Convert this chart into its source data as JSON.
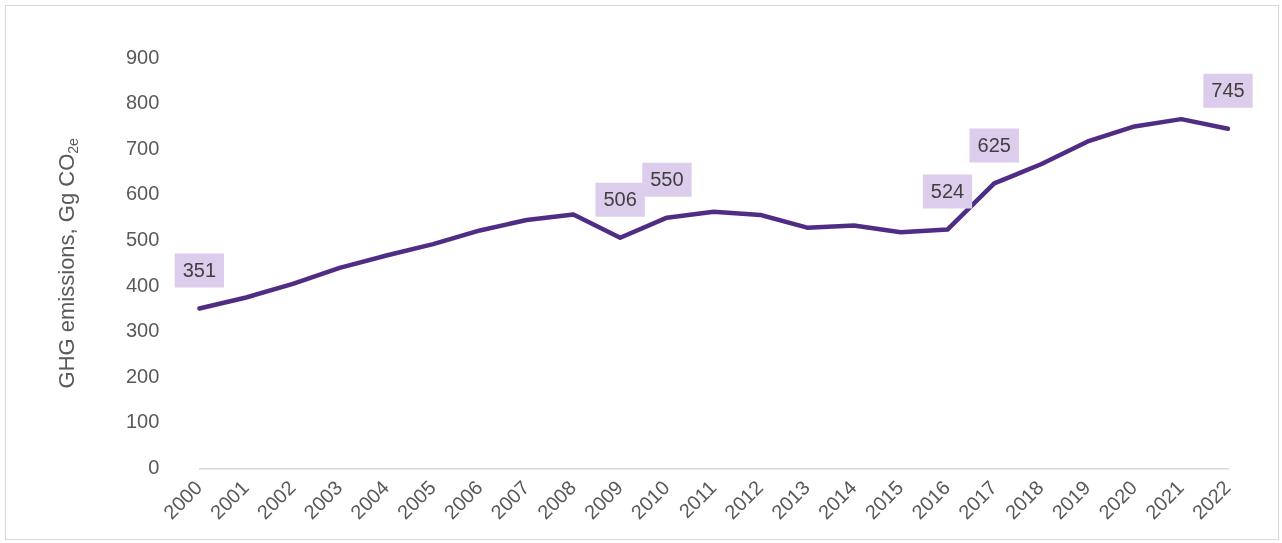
{
  "chart_data": {
    "type": "line",
    "ylabel": "GHG emissions, Gg CO$_{2e}$",
    "categories": [
      "2000",
      "2001",
      "2002",
      "2003",
      "2004",
      "2005",
      "2006",
      "2007",
      "2008",
      "2009",
      "2010",
      "2011",
      "2012",
      "2013",
      "2014",
      "2015",
      "2016",
      "2017",
      "2018",
      "2019",
      "2020",
      "2021",
      "2022"
    ],
    "series": [
      {
        "color": "#4f2d84",
        "values": [
          351,
          375,
          405,
          440,
          467,
          492,
          522,
          545,
          557,
          506,
          550,
          563,
          556,
          528,
          533,
          518,
          524,
          625,
          667,
          717,
          750,
          766,
          745
        ],
        "value_labels": [
          "351",
          null,
          null,
          null,
          null,
          null,
          null,
          null,
          null,
          "506",
          "550",
          null,
          null,
          null,
          null,
          null,
          "524",
          "625",
          null,
          null,
          null,
          null,
          "745"
        ]
      }
    ],
    "ylim": [
      0,
      900
    ],
    "yticks": [
      0,
      100,
      200,
      300,
      400,
      500,
      600,
      700,
      800,
      900
    ],
    "grid": false,
    "legend": false,
    "marker": "none",
    "line_style": "solid"
  }
}
